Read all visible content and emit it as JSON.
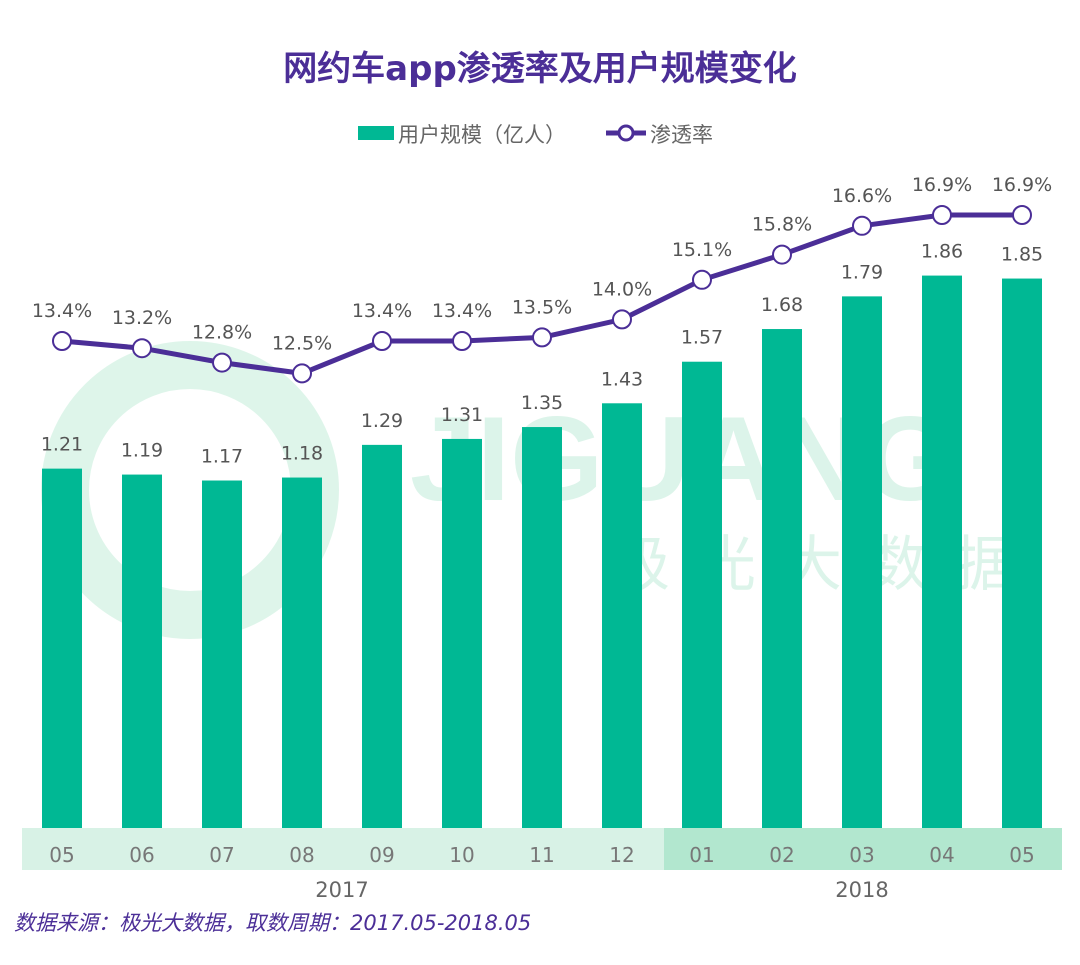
{
  "chart_data": {
    "type": "bar+line",
    "title": "网约车app渗透率及用户规模变化",
    "categories": [
      "05",
      "06",
      "07",
      "08",
      "09",
      "10",
      "11",
      "12",
      "01",
      "02",
      "03",
      "04",
      "05"
    ],
    "year_groups": [
      {
        "label": "2017",
        "count": 8
      },
      {
        "label": "2018",
        "count": 5
      }
    ],
    "series": [
      {
        "name": "用户规模（亿人）",
        "type": "bar",
        "color": "#00b894",
        "values": [
          1.21,
          1.19,
          1.17,
          1.18,
          1.29,
          1.31,
          1.35,
          1.43,
          1.57,
          1.68,
          1.79,
          1.86,
          1.85
        ],
        "labels": [
          "1.21",
          "1.19",
          "1.17",
          "1.18",
          "1.29",
          "1.31",
          "1.35",
          "1.43",
          "1.57",
          "1.68",
          "1.79",
          "1.86",
          "1.85"
        ]
      },
      {
        "name": "渗透率",
        "type": "line",
        "color": "#4b2e97",
        "values": [
          13.4,
          13.2,
          12.8,
          12.5,
          13.4,
          13.4,
          13.5,
          14.0,
          15.1,
          15.8,
          16.6,
          16.9,
          16.9
        ],
        "labels": [
          "13.4%",
          "13.2%",
          "12.8%",
          "12.5%",
          "13.4%",
          "13.4%",
          "13.5%",
          "14.0%",
          "15.1%",
          "15.8%",
          "16.6%",
          "16.9%",
          "16.9%"
        ]
      }
    ],
    "legend_position": "top",
    "grid": false,
    "source": "数据来源：极光大数据，取数周期：2017.05-2018.05"
  },
  "watermark": {
    "latin": "JIGUANG",
    "chinese": "极光大数据"
  },
  "colors": {
    "title": "#4b2e97",
    "bar": "#00b894",
    "line": "#4b2e97",
    "axis_band_2017": "#d8f2e6",
    "axis_band_2018": "#b2e7cf",
    "label": "#555555"
  }
}
